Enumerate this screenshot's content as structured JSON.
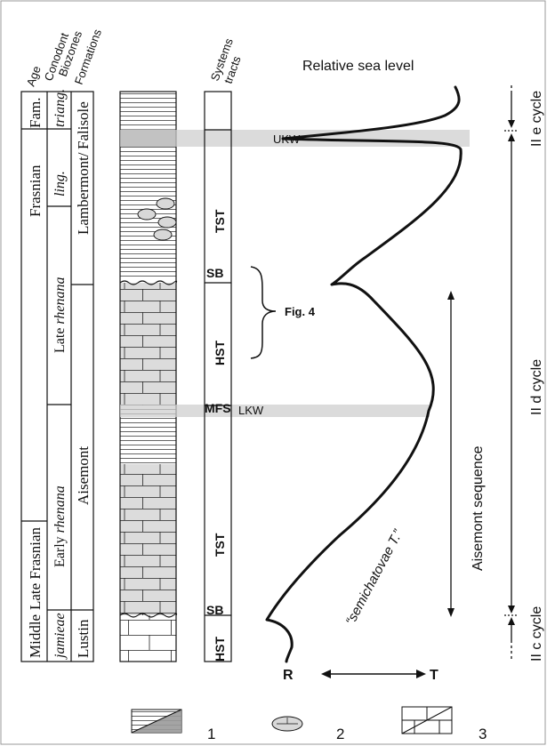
{
  "headers": {
    "age": "Age",
    "conodont_biozones": [
      "Conodont",
      "Biozones"
    ],
    "formations": "Formations",
    "systems_tracts": [
      "Systems",
      "tracts"
    ],
    "relative_sea_level": "Relative sea level"
  },
  "age_column": {
    "famennian": "Fam.",
    "frasnian": "Frasnian",
    "late_frasnian": "Late Frasnian",
    "middle": "Middle"
  },
  "conodont_column": {
    "triang": "triang.",
    "ling": "ling.",
    "late_rhenana_prefix": "Late",
    "late_rhenana_italic": "rhenana",
    "early_rhenana_prefix": "Early",
    "early_rhenana_italic": "rhenana",
    "jamieae": "jamieae"
  },
  "formation_column": {
    "falisole": "Falisole",
    "lambermont": "Lambermont/",
    "aisemont": "Aisemont",
    "lustin": "Lustin"
  },
  "systems_tracts": {
    "tst_upper": "TST",
    "sb_upper": "SB",
    "hst_upper": "HST",
    "mfs": "MFS",
    "tst_lower": "TST",
    "sb_lower": "SB",
    "hst_lower": "HST"
  },
  "annotations": {
    "ukw": "UKW",
    "lkw": "LKW",
    "fig4": "Fig. 4",
    "semichatovae": "“semichatovae T.”",
    "aisemont_sequence": "Aisemont sequence",
    "r": "R",
    "t": "T"
  },
  "cycles": {
    "ii_e": "II e cycle",
    "ii_d": "II d cycle",
    "ii_c": "II c cycle"
  },
  "legend": {
    "item1": "1",
    "item2": "2",
    "item3": "3"
  }
}
